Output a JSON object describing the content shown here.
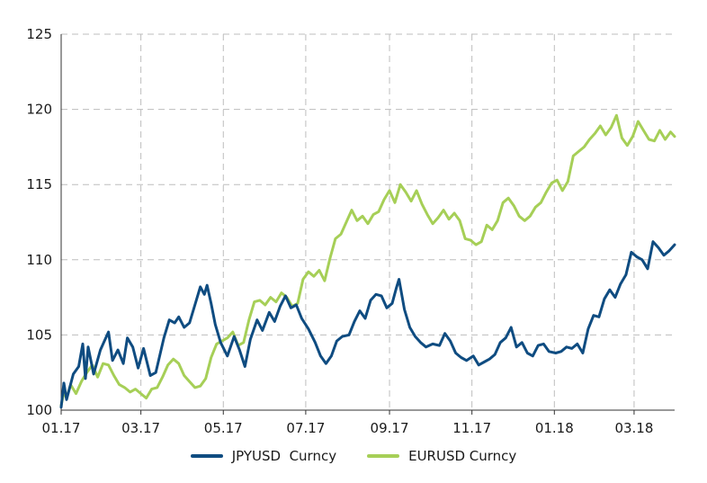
{
  "chart_data": {
    "type": "line",
    "title": "",
    "xlabel": "",
    "ylabel": "",
    "ylim": [
      100,
      125
    ],
    "yticks": [
      100,
      105,
      110,
      115,
      120,
      125
    ],
    "xlim": [
      "2017-01-01",
      "2018-03-31"
    ],
    "xticks": [
      {
        "label": "01.17",
        "date": "2017-01-01"
      },
      {
        "label": "03.17",
        "date": "2017-03-01"
      },
      {
        "label": "05.17",
        "date": "2017-05-01"
      },
      {
        "label": "07.17",
        "date": "2017-07-01"
      },
      {
        "label": "09.17",
        "date": "2017-09-01"
      },
      {
        "label": "11.17",
        "date": "2017-11-01"
      },
      {
        "label": "01.18",
        "date": "2018-01-01"
      },
      {
        "label": "03.18",
        "date": "2018-03-01"
      }
    ],
    "grid": true,
    "legend_position": "bottom",
    "series": [
      {
        "name": "JPYUSD  Curncy",
        "color": "#0f4c81",
        "points": [
          [
            "2017-01-01",
            100.2
          ],
          [
            "2017-01-03",
            101.8
          ],
          [
            "2017-01-05",
            100.7
          ],
          [
            "2017-01-10",
            102.4
          ],
          [
            "2017-01-14",
            102.9
          ],
          [
            "2017-01-17",
            104.4
          ],
          [
            "2017-01-19",
            102.1
          ],
          [
            "2017-01-21",
            104.2
          ],
          [
            "2017-01-25",
            102.4
          ],
          [
            "2017-01-30",
            104.0
          ],
          [
            "2017-02-05",
            105.2
          ],
          [
            "2017-02-08",
            103.3
          ],
          [
            "2017-02-12",
            104.0
          ],
          [
            "2017-02-16",
            103.1
          ],
          [
            "2017-02-19",
            104.8
          ],
          [
            "2017-02-23",
            104.2
          ],
          [
            "2017-02-27",
            102.8
          ],
          [
            "2017-03-03",
            104.1
          ],
          [
            "2017-03-08",
            102.3
          ],
          [
            "2017-03-12",
            102.5
          ],
          [
            "2017-03-18",
            104.8
          ],
          [
            "2017-03-22",
            106.0
          ],
          [
            "2017-03-26",
            105.8
          ],
          [
            "2017-03-29",
            106.2
          ],
          [
            "2017-04-02",
            105.5
          ],
          [
            "2017-04-06",
            105.8
          ],
          [
            "2017-04-10",
            107.0
          ],
          [
            "2017-04-14",
            108.2
          ],
          [
            "2017-04-17",
            107.7
          ],
          [
            "2017-04-19",
            108.3
          ],
          [
            "2017-04-22",
            107.1
          ],
          [
            "2017-04-25",
            105.7
          ],
          [
            "2017-04-29",
            104.5
          ],
          [
            "2017-05-04",
            103.6
          ],
          [
            "2017-05-09",
            104.9
          ],
          [
            "2017-05-13",
            104.0
          ],
          [
            "2017-05-17",
            102.9
          ],
          [
            "2017-05-21",
            104.7
          ],
          [
            "2017-05-26",
            106.0
          ],
          [
            "2017-05-30",
            105.3
          ],
          [
            "2017-06-04",
            106.5
          ],
          [
            "2017-06-08",
            105.9
          ],
          [
            "2017-06-12",
            106.9
          ],
          [
            "2017-06-16",
            107.6
          ],
          [
            "2017-06-20",
            106.8
          ],
          [
            "2017-06-24",
            107.0
          ],
          [
            "2017-06-28",
            106.1
          ],
          [
            "2017-07-03",
            105.4
          ],
          [
            "2017-07-08",
            104.5
          ],
          [
            "2017-07-12",
            103.6
          ],
          [
            "2017-07-16",
            103.1
          ],
          [
            "2017-07-20",
            103.6
          ],
          [
            "2017-07-24",
            104.6
          ],
          [
            "2017-07-28",
            104.9
          ],
          [
            "2017-08-02",
            105.0
          ],
          [
            "2017-08-06",
            105.9
          ],
          [
            "2017-08-10",
            106.6
          ],
          [
            "2017-08-14",
            106.1
          ],
          [
            "2017-08-18",
            107.3
          ],
          [
            "2017-08-22",
            107.7
          ],
          [
            "2017-08-26",
            107.6
          ],
          [
            "2017-08-30",
            106.8
          ],
          [
            "2017-09-03",
            107.1
          ],
          [
            "2017-09-06",
            108.1
          ],
          [
            "2017-09-08",
            108.7
          ],
          [
            "2017-09-12",
            106.7
          ],
          [
            "2017-09-16",
            105.5
          ],
          [
            "2017-09-20",
            104.9
          ],
          [
            "2017-09-24",
            104.5
          ],
          [
            "2017-09-28",
            104.2
          ],
          [
            "2017-10-03",
            104.4
          ],
          [
            "2017-10-08",
            104.3
          ],
          [
            "2017-10-12",
            105.1
          ],
          [
            "2017-10-16",
            104.6
          ],
          [
            "2017-10-20",
            103.8
          ],
          [
            "2017-10-24",
            103.5
          ],
          [
            "2017-10-28",
            103.3
          ],
          [
            "2017-11-02",
            103.6
          ],
          [
            "2017-11-06",
            103.0
          ],
          [
            "2017-11-10",
            103.2
          ],
          [
            "2017-11-14",
            103.4
          ],
          [
            "2017-11-18",
            103.7
          ],
          [
            "2017-11-22",
            104.5
          ],
          [
            "2017-11-26",
            104.8
          ],
          [
            "2017-11-30",
            105.5
          ],
          [
            "2017-12-04",
            104.2
          ],
          [
            "2017-12-08",
            104.5
          ],
          [
            "2017-12-12",
            103.8
          ],
          [
            "2017-12-16",
            103.6
          ],
          [
            "2017-12-20",
            104.3
          ],
          [
            "2017-12-24",
            104.4
          ],
          [
            "2017-12-28",
            103.9
          ],
          [
            "2018-01-02",
            103.8
          ],
          [
            "2018-01-06",
            103.9
          ],
          [
            "2018-01-10",
            104.2
          ],
          [
            "2018-01-14",
            104.1
          ],
          [
            "2018-01-18",
            104.4
          ],
          [
            "2018-01-22",
            103.8
          ],
          [
            "2018-01-26",
            105.4
          ],
          [
            "2018-01-30",
            106.3
          ],
          [
            "2018-02-03",
            106.2
          ],
          [
            "2018-02-07",
            107.4
          ],
          [
            "2018-02-11",
            108.0
          ],
          [
            "2018-02-15",
            107.5
          ],
          [
            "2018-02-19",
            108.4
          ],
          [
            "2018-02-23",
            109.0
          ],
          [
            "2018-02-27",
            110.5
          ],
          [
            "2018-03-03",
            110.2
          ],
          [
            "2018-03-07",
            110.0
          ],
          [
            "2018-03-11",
            109.4
          ],
          [
            "2018-03-15",
            111.2
          ],
          [
            "2018-03-19",
            110.8
          ],
          [
            "2018-03-23",
            110.3
          ],
          [
            "2018-03-27",
            110.6
          ],
          [
            "2018-03-31",
            111.0
          ]
        ]
      },
      {
        "name": "EURUSD Curncy",
        "color": "#a6cf57",
        "points": [
          [
            "2017-01-01",
            100.3
          ],
          [
            "2017-01-03",
            101.2
          ],
          [
            "2017-01-05",
            100.8
          ],
          [
            "2017-01-08",
            101.7
          ],
          [
            "2017-01-12",
            101.1
          ],
          [
            "2017-01-16",
            101.9
          ],
          [
            "2017-01-20",
            102.5
          ],
          [
            "2017-01-24",
            103.0
          ],
          [
            "2017-01-28",
            102.2
          ],
          [
            "2017-02-01",
            103.1
          ],
          [
            "2017-02-05",
            103.0
          ],
          [
            "2017-02-09",
            102.3
          ],
          [
            "2017-02-13",
            101.7
          ],
          [
            "2017-02-17",
            101.5
          ],
          [
            "2017-02-21",
            101.2
          ],
          [
            "2017-02-25",
            101.4
          ],
          [
            "2017-03-01",
            101.1
          ],
          [
            "2017-03-05",
            100.8
          ],
          [
            "2017-03-09",
            101.4
          ],
          [
            "2017-03-13",
            101.5
          ],
          [
            "2017-03-17",
            102.2
          ],
          [
            "2017-03-21",
            103.0
          ],
          [
            "2017-03-25",
            103.4
          ],
          [
            "2017-03-29",
            103.1
          ],
          [
            "2017-04-02",
            102.3
          ],
          [
            "2017-04-06",
            101.9
          ],
          [
            "2017-04-10",
            101.5
          ],
          [
            "2017-04-14",
            101.6
          ],
          [
            "2017-04-18",
            102.1
          ],
          [
            "2017-04-22",
            103.5
          ],
          [
            "2017-04-26",
            104.4
          ],
          [
            "2017-04-30",
            104.6
          ],
          [
            "2017-05-04",
            104.8
          ],
          [
            "2017-05-08",
            105.2
          ],
          [
            "2017-05-12",
            104.3
          ],
          [
            "2017-05-16",
            104.5
          ],
          [
            "2017-05-20",
            106.0
          ],
          [
            "2017-05-24",
            107.2
          ],
          [
            "2017-05-28",
            107.3
          ],
          [
            "2017-06-01",
            107.0
          ],
          [
            "2017-06-05",
            107.5
          ],
          [
            "2017-06-09",
            107.2
          ],
          [
            "2017-06-13",
            107.8
          ],
          [
            "2017-06-17",
            107.5
          ],
          [
            "2017-06-21",
            106.9
          ],
          [
            "2017-06-25",
            107.1
          ],
          [
            "2017-06-29",
            108.7
          ],
          [
            "2017-07-03",
            109.2
          ],
          [
            "2017-07-07",
            108.9
          ],
          [
            "2017-07-11",
            109.3
          ],
          [
            "2017-07-15",
            108.6
          ],
          [
            "2017-07-19",
            110.1
          ],
          [
            "2017-07-23",
            111.4
          ],
          [
            "2017-07-27",
            111.7
          ],
          [
            "2017-07-31",
            112.5
          ],
          [
            "2017-08-04",
            113.3
          ],
          [
            "2017-08-08",
            112.6
          ],
          [
            "2017-08-12",
            112.9
          ],
          [
            "2017-08-16",
            112.4
          ],
          [
            "2017-08-20",
            113.0
          ],
          [
            "2017-08-24",
            113.2
          ],
          [
            "2017-08-28",
            114.0
          ],
          [
            "2017-09-01",
            114.6
          ],
          [
            "2017-09-05",
            113.8
          ],
          [
            "2017-09-09",
            115.0
          ],
          [
            "2017-09-13",
            114.5
          ],
          [
            "2017-09-17",
            113.9
          ],
          [
            "2017-09-21",
            114.6
          ],
          [
            "2017-09-25",
            113.7
          ],
          [
            "2017-09-29",
            113.0
          ],
          [
            "2017-10-03",
            112.4
          ],
          [
            "2017-10-07",
            112.8
          ],
          [
            "2017-10-11",
            113.3
          ],
          [
            "2017-10-15",
            112.7
          ],
          [
            "2017-10-19",
            113.1
          ],
          [
            "2017-10-23",
            112.6
          ],
          [
            "2017-10-27",
            111.4
          ],
          [
            "2017-10-31",
            111.3
          ],
          [
            "2017-11-04",
            111.0
          ],
          [
            "2017-11-08",
            111.2
          ],
          [
            "2017-11-12",
            112.3
          ],
          [
            "2017-11-16",
            112.0
          ],
          [
            "2017-11-20",
            112.6
          ],
          [
            "2017-11-24",
            113.8
          ],
          [
            "2017-11-28",
            114.1
          ],
          [
            "2017-12-02",
            113.6
          ],
          [
            "2017-12-06",
            112.9
          ],
          [
            "2017-12-10",
            112.6
          ],
          [
            "2017-12-14",
            112.9
          ],
          [
            "2017-12-18",
            113.5
          ],
          [
            "2017-12-22",
            113.8
          ],
          [
            "2017-12-26",
            114.5
          ],
          [
            "2017-12-30",
            115.1
          ],
          [
            "2018-01-03",
            115.3
          ],
          [
            "2018-01-07",
            114.6
          ],
          [
            "2018-01-11",
            115.2
          ],
          [
            "2018-01-15",
            116.9
          ],
          [
            "2018-01-19",
            117.2
          ],
          [
            "2018-01-23",
            117.5
          ],
          [
            "2018-01-27",
            118.0
          ],
          [
            "2018-01-31",
            118.4
          ],
          [
            "2018-02-04",
            118.9
          ],
          [
            "2018-02-08",
            118.3
          ],
          [
            "2018-02-12",
            118.8
          ],
          [
            "2018-02-16",
            119.6
          ],
          [
            "2018-02-20",
            118.1
          ],
          [
            "2018-02-24",
            117.6
          ],
          [
            "2018-02-28",
            118.2
          ],
          [
            "2018-03-04",
            119.2
          ],
          [
            "2018-03-08",
            118.6
          ],
          [
            "2018-03-12",
            118.0
          ],
          [
            "2018-03-16",
            117.9
          ],
          [
            "2018-03-20",
            118.6
          ],
          [
            "2018-03-24",
            118.0
          ],
          [
            "2018-03-28",
            118.5
          ],
          [
            "2018-03-31",
            118.2
          ]
        ]
      }
    ]
  }
}
